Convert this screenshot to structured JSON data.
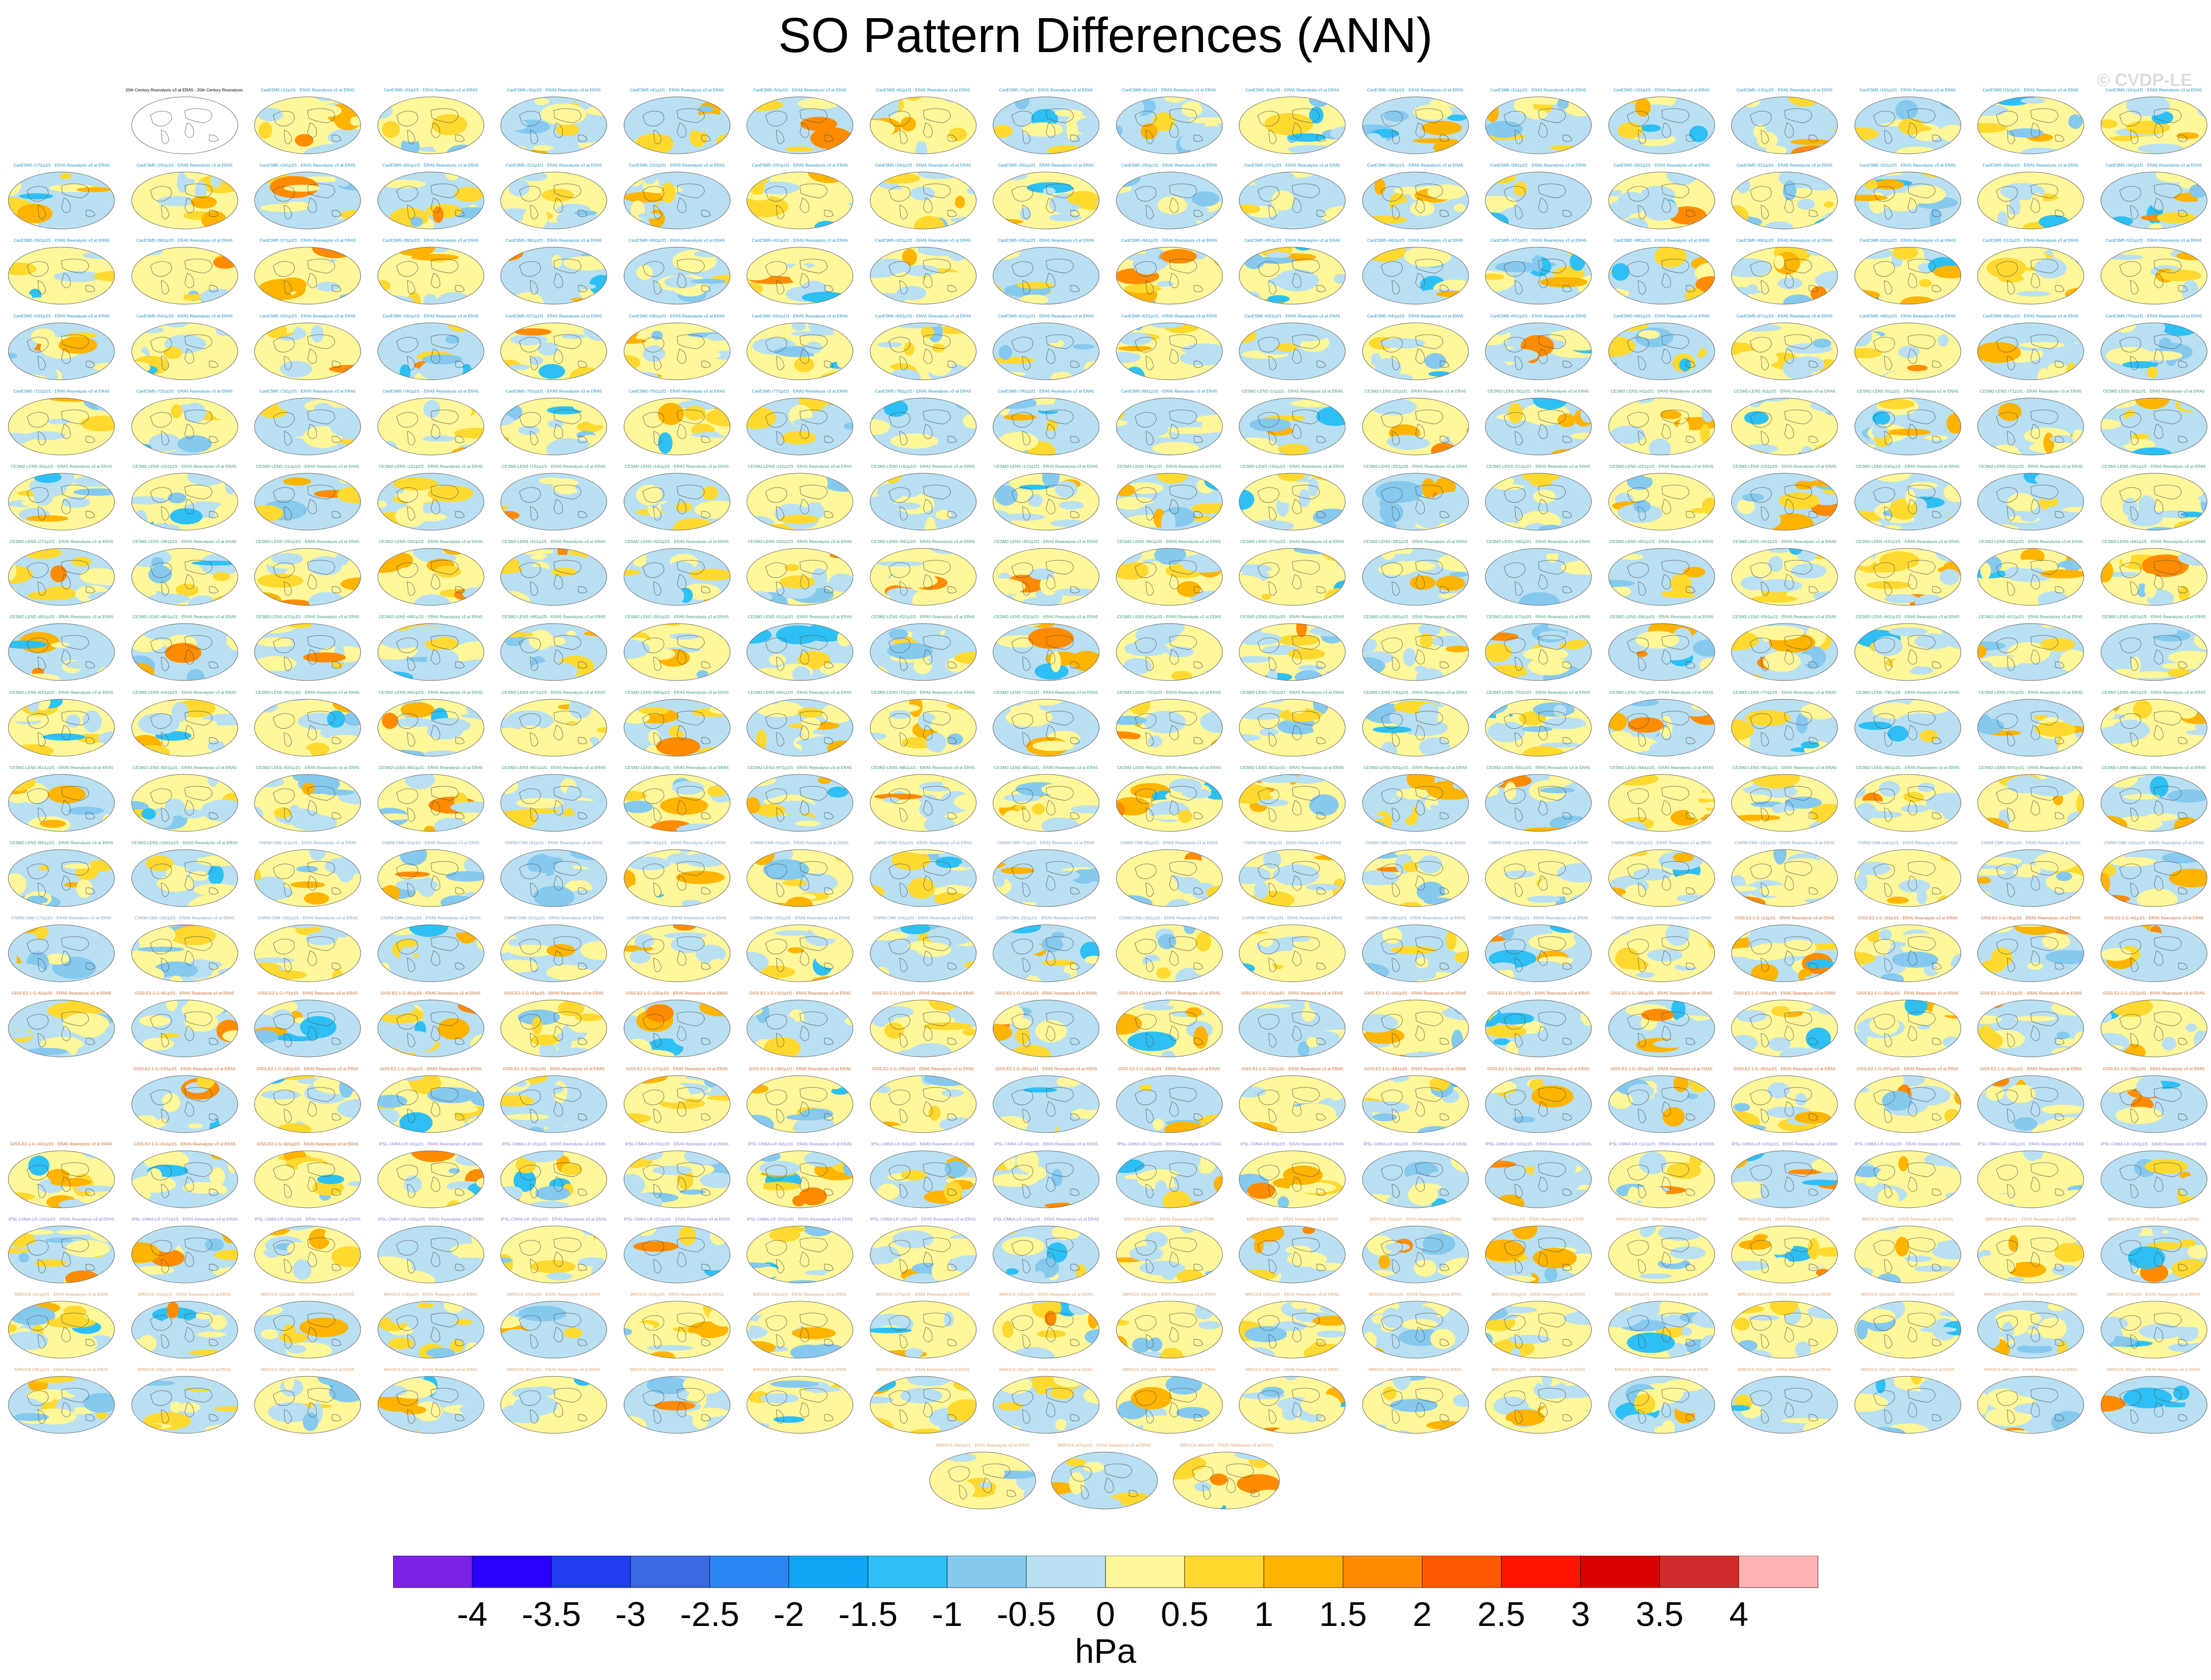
{
  "title": "SO Pattern Differences (ANN)",
  "watermark": "© CVDP-LE",
  "units": "hPa",
  "chart_data": {
    "type": "heatmap",
    "title": "SO Pattern Differences (ANN)",
    "variable_units": "hPa",
    "projection": "global-ellipse",
    "panel_layout": "18 columns by 19 rows plus 3 centred panels in the final row",
    "reference_panel_caption": "20th Century Reanalysis v3 at ERA5 - 20th Century Reanalysis v3 at ERA5",
    "panel_caption_template": "{model} r{member}i1p1f1 - ERA5 Reanalysis v3 at ERA5",
    "model_groups": [
      {
        "name": "CanESM5",
        "color": "#1f8fbf"
      },
      {
        "name": "CESM2-LENS",
        "color": "#3a9b6a"
      },
      {
        "name": "CNRM-CM6",
        "color": "#7a9fc0"
      },
      {
        "name": "GISS-E2-1-G",
        "color": "#c56a2a"
      },
      {
        "name": "IPSL-CM6A-LR",
        "color": "#8c7bd0"
      },
      {
        "name": "MIROC6",
        "color": "#d9a070"
      }
    ],
    "colorbar": {
      "colors": [
        "#7b22e6",
        "#2a00ff",
        "#1f3ef0",
        "#3a68e0",
        "#2a86f0",
        "#12a4f5",
        "#2ec0f5",
        "#86c9ef",
        "#b9e0f2",
        "#fff799",
        "#ffd92f",
        "#ffb400",
        "#ff8c00",
        "#ff5a00",
        "#ff1400",
        "#de0000",
        "#d22a2a",
        "#ffb3b3"
      ],
      "ticks": [
        "-4",
        "-3.5",
        "-3",
        "-2.5",
        "-2",
        "-1.5",
        "-1",
        "-0.5",
        "0",
        "0.5",
        "1",
        "1.5",
        "2",
        "2.5",
        "3",
        "3.5",
        "4"
      ],
      "label": "hPa"
    }
  }
}
